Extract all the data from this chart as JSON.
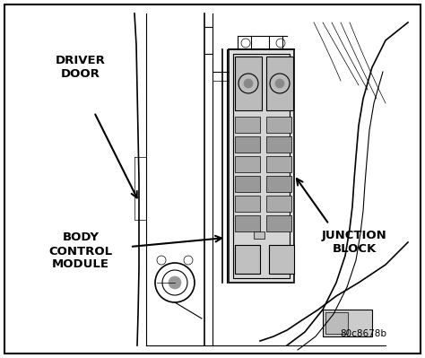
{
  "bg_color": "#ffffff",
  "line_color": "#000000",
  "fig_width": 4.74,
  "fig_height": 3.99,
  "dpi": 100,
  "labels": {
    "driver_door": "DRIVER\nDOOR",
    "body_control_module": "BODY\nCONTROL\nMODULE",
    "junction_block": "JUNCTION\nBLOCK",
    "diagram_id": "80c8678b"
  },
  "font_size_labels": 9.5,
  "font_size_id": 7.5
}
